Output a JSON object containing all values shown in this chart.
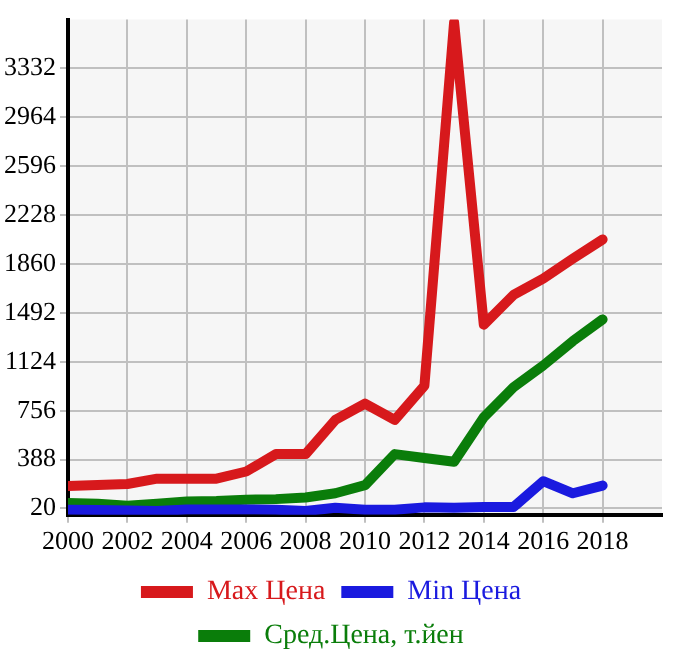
{
  "chart_data": {
    "type": "line",
    "x": [
      2000,
      2001,
      2002,
      2003,
      2004,
      2005,
      2006,
      2007,
      2008,
      2009,
      2010,
      2011,
      2012,
      2013,
      2014,
      2015,
      2016,
      2017,
      2018
    ],
    "series": [
      {
        "name": "Max Цена",
        "color": "#d7191c",
        "values": [
          188,
          196,
          204,
          244,
          244,
          244,
          298,
          429,
          429,
          686,
          809,
          686,
          944,
          3680,
          1403,
          1627,
          1750,
          1900,
          2045
        ]
      },
      {
        "name": "Min Цена",
        "color": "#1a1adf",
        "values": [
          10,
          8,
          5,
          0,
          12,
          12,
          12,
          10,
          0,
          25,
          10,
          10,
          28,
          25,
          30,
          30,
          225,
          134,
          192
        ]
      },
      {
        "name": "Сред.Цена, т.йен",
        "color": "#0a7d0a",
        "values": [
          60,
          55,
          41,
          55,
          73,
          75,
          85,
          90,
          102,
          134,
          195,
          429,
          400,
          372,
          707,
          932,
          1096,
          1280,
          1443
        ]
      }
    ],
    "xlim": [
      2000,
      2020
    ],
    "xticks": [
      2000,
      2002,
      2004,
      2006,
      2008,
      2010,
      2012,
      2014,
      2016,
      2018
    ],
    "ylim": [
      -28,
      3700
    ],
    "yticks": [
      20,
      388,
      756,
      1124,
      1492,
      1860,
      2228,
      2596,
      2964,
      3332
    ],
    "grid": true,
    "legend": "bottom",
    "marker": "none",
    "line_style": "solid"
  }
}
